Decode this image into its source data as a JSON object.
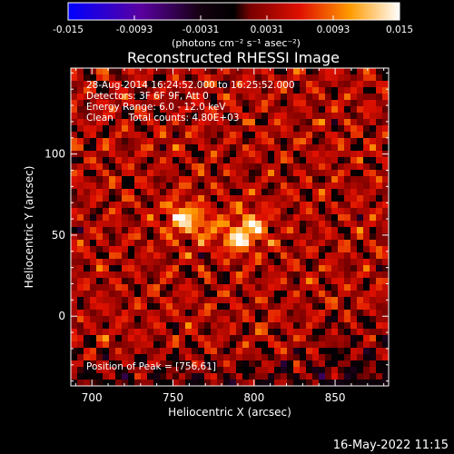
{
  "chart_data": {
    "type": "heatmap",
    "title": "Reconstructed RHESSI Image",
    "xlabel": "Heliocentric X (arcsec)",
    "ylabel": "Heliocentric Y (arcsec)",
    "xlim": [
      687,
      883
    ],
    "ylim": [
      -43,
      153
    ],
    "x_ticks": [
      700,
      750,
      800,
      850
    ],
    "y_ticks": [
      0,
      50,
      100
    ],
    "colorbar": {
      "min": -0.015,
      "max": 0.015,
      "ticks": [
        "-0.015",
        "-0.0093",
        "-0.0031",
        "0.0031",
        "0.0093",
        "0.015"
      ],
      "unit_label": "(photons cm⁻² s⁻¹ asec⁻²)",
      "colors": [
        "#0000ff",
        "#6a00a8",
        "#000000",
        "#8b0000",
        "#ff3000",
        "#ffd000",
        "#ffffff"
      ]
    },
    "annotations": [
      "28-Aug-2014 16:24:52.000 to 16:25:52.000",
      "Detectors: 3F 6F 9F, Att 0",
      "Energy Range: 6.0 - 12.0 keV",
      "Clean     Total counts: 4.80E+03"
    ],
    "peak_label": "Position of Peak = [756,61]",
    "sources": [
      {
        "x": 756,
        "y": 61,
        "intensity": 1.0
      },
      {
        "x": 790,
        "y": 48,
        "intensity": 0.95
      },
      {
        "x": 800,
        "y": 56,
        "intensity": 0.7
      },
      {
        "x": 770,
        "y": 55,
        "intensity": 0.55
      }
    ]
  },
  "footer": {
    "timestamp": "16-May-2022 11:15"
  }
}
